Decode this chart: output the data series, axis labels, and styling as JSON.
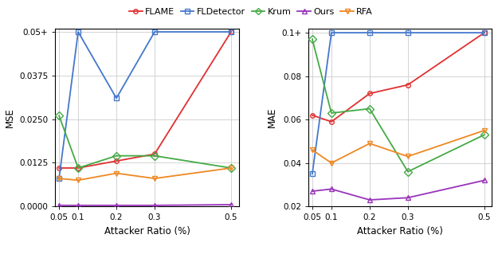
{
  "x": [
    0.05,
    0.1,
    0.2,
    0.3,
    0.5
  ],
  "mse": {
    "FLAME": [
      0.011,
      0.011,
      0.013,
      0.015,
      0.05
    ],
    "FLDetector": [
      0.008,
      0.05,
      0.031,
      0.05,
      0.05
    ],
    "Krum": [
      0.026,
      0.011,
      0.0145,
      0.0145,
      0.011
    ],
    "Ours": [
      0.0003,
      0.0003,
      0.0003,
      0.0003,
      0.0005
    ],
    "RFA": [
      0.008,
      0.0075,
      0.0095,
      0.008,
      0.011
    ]
  },
  "mae": {
    "FLAME": [
      0.062,
      0.059,
      0.072,
      0.076,
      0.1
    ],
    "FLDetector": [
      0.035,
      0.1,
      0.1,
      0.1,
      0.1
    ],
    "Krum": [
      0.097,
      0.063,
      0.065,
      0.036,
      0.053
    ],
    "Ours": [
      0.027,
      0.028,
      0.023,
      0.024,
      0.032
    ],
    "RFA": [
      0.046,
      0.04,
      0.049,
      0.043,
      0.055
    ]
  },
  "mse_ylim": [
    0.0,
    0.051
  ],
  "mae_ylim": [
    0.02,
    0.102
  ],
  "mse_yticks": [
    0.0,
    0.0125,
    0.025,
    0.0375,
    0.05
  ],
  "mae_yticks": [
    0.02,
    0.04,
    0.06,
    0.08,
    0.1
  ],
  "mse_yticklabels": [
    "0.0000",
    "0.0125",
    "0.0250",
    "0.0375",
    "0.05+"
  ],
  "mae_yticklabels": [
    "0.02",
    "0.04",
    "0.06",
    "0.08",
    "0.1+"
  ],
  "colors": {
    "FLAME": "#e03030",
    "FLDetector": "#4477cc",
    "Krum": "#44aa44",
    "Ours": "#9933bb",
    "RFA": "#ee8822"
  },
  "markers": {
    "FLAME": "o",
    "FLDetector": "s",
    "Krum": "D",
    "Ours": "^",
    "RFA": "v"
  },
  "marker_sizes": {
    "FLAME": 4,
    "FLDetector": 4,
    "Krum": 5,
    "Ours": 4,
    "RFA": 4
  },
  "xlabel": "Attacker Ratio (%)",
  "ylabel_mse": "MSE",
  "ylabel_mae": "MAE",
  "clip_mse": 0.05,
  "clip_mae": 0.1,
  "linewidth": 1.3,
  "methods": [
    "FLAME",
    "FLDetector",
    "Krum",
    "Ours",
    "RFA"
  ]
}
